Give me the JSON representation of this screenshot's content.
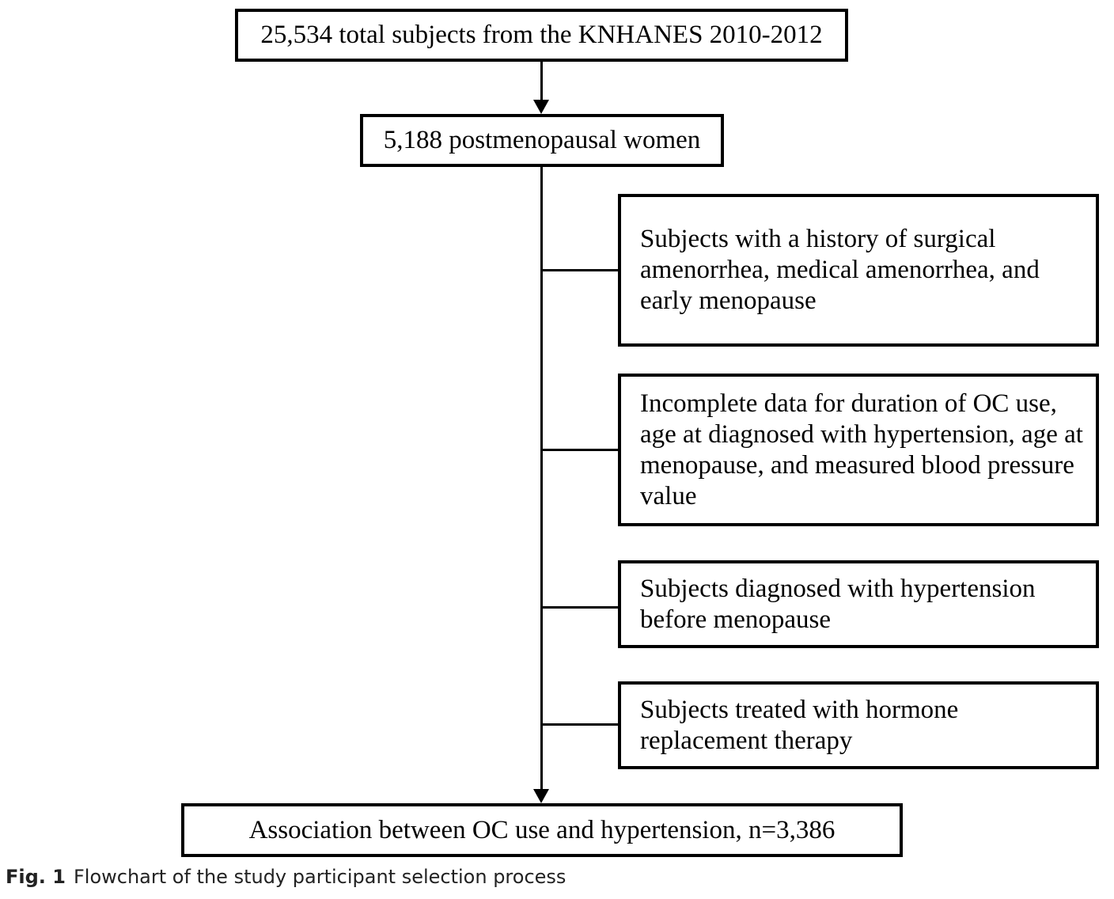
{
  "flowchart": {
    "top_box": "25,534 total subjects from the KNHANES 2010-2012",
    "second_box": "5,188 postmenopausal women",
    "exclusions": [
      "Subjects with a history of surgical amenorrhea, medical amenorrhea, and early menopause",
      "Incomplete data for duration of OC use, age at diagnosed with hypertension, age at menopause, and measured blood pressure value",
      "Subjects diagnosed with hypertension before menopause",
      "Subjects treated with hormone replacement therapy"
    ],
    "final_box": "Association between OC use and hypertension, n=3,386"
  },
  "caption": {
    "label": "Fig. 1",
    "text": "Flowchart of the study participant selection process"
  }
}
